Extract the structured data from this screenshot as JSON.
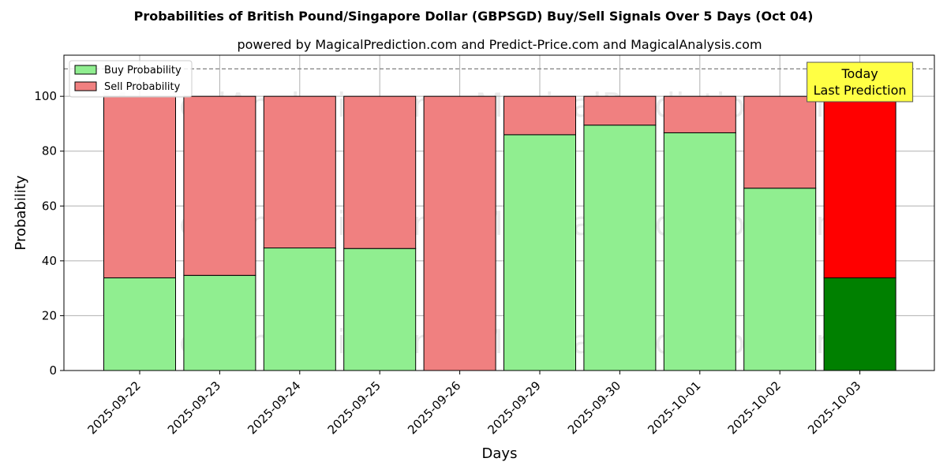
{
  "chart_data": {
    "type": "bar",
    "stacked": true,
    "title": "Probabilities of British Pound/Singapore Dollar (GBPSGD) Buy/Sell Signals Over 5 Days (Oct 04)",
    "subtitle": "powered by MagicalPrediction.com and Predict-Price.com and MagicalAnalysis.com",
    "xlabel": "Days",
    "ylabel": "Probability",
    "ylim": [
      0,
      115
    ],
    "yticks": [
      0,
      20,
      40,
      60,
      80,
      100
    ],
    "grid": true,
    "legend_position": "top-left",
    "categories": [
      "2025-09-22",
      "2025-09-23",
      "2025-09-24",
      "2025-09-25",
      "2025-09-26",
      "2025-09-29",
      "2025-09-30",
      "2025-10-01",
      "2025-10-02",
      "2025-10-03"
    ],
    "series": [
      {
        "name": "Buy Probability",
        "values": [
          33.8,
          34.7,
          44.7,
          44.5,
          0.0,
          86.0,
          89.5,
          86.7,
          66.5,
          33.8
        ]
      },
      {
        "name": "Sell Probability",
        "values": [
          66.2,
          65.3,
          55.3,
          55.5,
          100.0,
          14.0,
          10.5,
          13.3,
          33.5,
          66.2
        ]
      }
    ],
    "colors": {
      "buy": "#90ee90",
      "sell": "#f08080",
      "buy_highlight": "#008000",
      "sell_highlight": "#ff0000",
      "annotation_bg": "#ffff44"
    },
    "reference_line": 110,
    "highlight_index": 9,
    "annotation": [
      "Today",
      "Last Prediction"
    ],
    "watermarks": [
      "MagicalAnalysis.com",
      "MagicalPrediction.com"
    ]
  }
}
